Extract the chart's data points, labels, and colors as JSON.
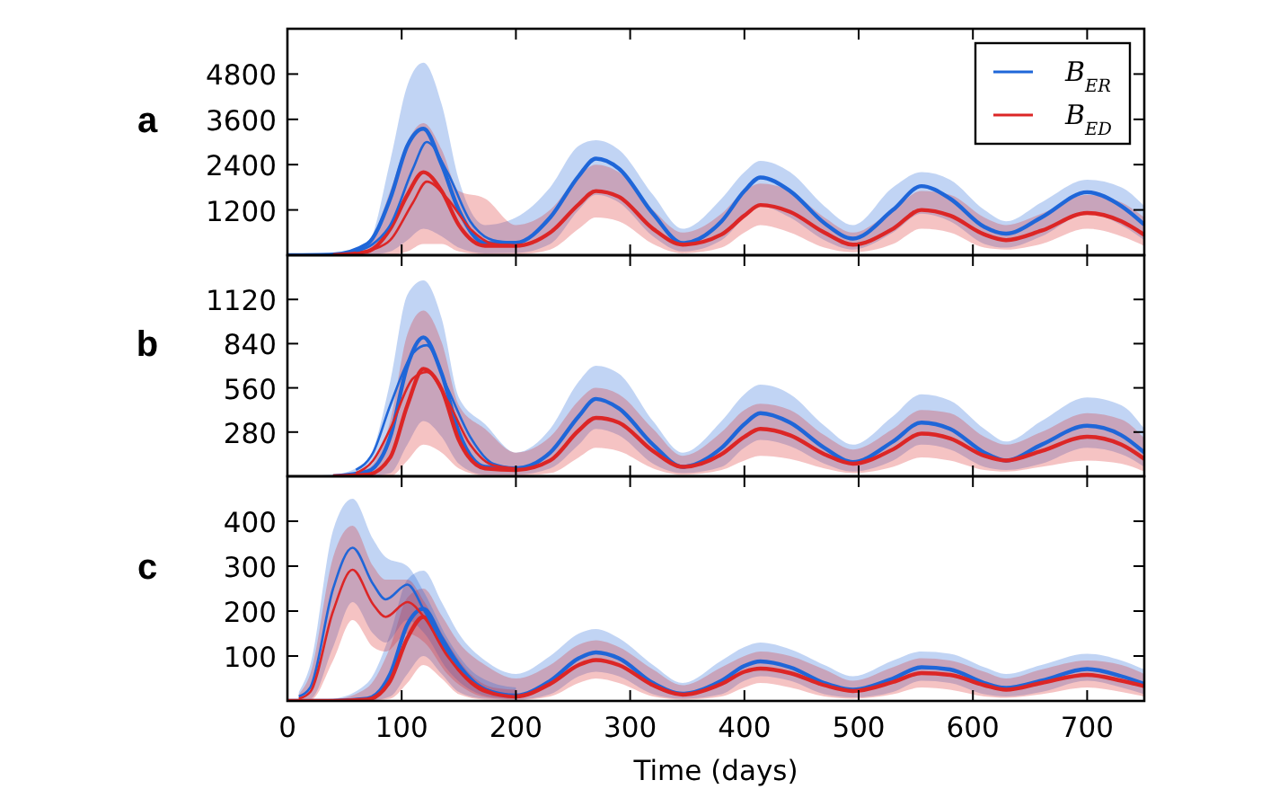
{
  "chart_data": [
    {
      "type": "line",
      "title": "a",
      "xlim": [
        0,
        750
      ],
      "xticks": [
        0,
        100,
        200,
        300,
        400,
        500,
        600,
        700
      ],
      "ylim": [
        0,
        6000
      ],
      "yticks": [
        1200,
        2400,
        3600,
        4800
      ],
      "tick_labels": "y",
      "legend": "top right",
      "series": [
        {
          "name": "B$_{ER}$",
          "color": "#1f66d8",
          "x": [
            0,
            40,
            70,
            90,
            105,
            119,
            135,
            150,
            173,
            200,
            230,
            255,
            270,
            290,
            320,
            346,
            380,
            400,
            414,
            440,
            470,
            495,
            530,
            555,
            580,
            610,
            629,
            660,
            700,
            730,
            750
          ],
          "values": [
            0,
            20,
            300,
            1500,
            2900,
            3350,
            2400,
            1200,
            320,
            330,
            1000,
            2100,
            2560,
            2300,
            1100,
            320,
            900,
            1700,
            2060,
            1700,
            850,
            440,
            1200,
            1830,
            1500,
            750,
            570,
            1000,
            1670,
            1300,
            810
          ],
          "upper": [
            0,
            40,
            300,
            2500,
            4500,
            5100,
            4000,
            2000,
            800,
            1000,
            1800,
            2900,
            3050,
            2800,
            1600,
            700,
            1500,
            2200,
            2500,
            2200,
            1300,
            800,
            1800,
            2200,
            2000,
            1200,
            900,
            1400,
            2000,
            1800,
            1300
          ],
          "lower": [
            0,
            0,
            0,
            100,
            400,
            700,
            500,
            200,
            50,
            60,
            300,
            1200,
            1600,
            1400,
            500,
            100,
            400,
            1000,
            1300,
            1000,
            400,
            150,
            600,
            1100,
            900,
            300,
            200,
            500,
            1100,
            800,
            400
          ]
        },
        {
          "name": "B$_{ED}$",
          "color": "#dc2626",
          "x": [
            0,
            40,
            70,
            90,
            105,
            119,
            135,
            150,
            173,
            200,
            230,
            255,
            270,
            290,
            320,
            346,
            380,
            400,
            414,
            440,
            470,
            495,
            530,
            555,
            580,
            610,
            629,
            660,
            700,
            730,
            750
          ],
          "values": [
            null,
            0,
            100,
            700,
            1600,
            2200,
            1700,
            800,
            250,
            250,
            600,
            1350,
            1700,
            1550,
            700,
            280,
            550,
            1050,
            1330,
            1150,
            600,
            280,
            700,
            1200,
            1050,
            550,
            400,
            650,
            1120,
            900,
            540
          ],
          "upper": [
            0,
            20,
            300,
            1700,
            3000,
            3500,
            2800,
            1700,
            1500,
            800,
            1200,
            2100,
            2400,
            2200,
            1200,
            600,
            1100,
            1700,
            1900,
            1700,
            1000,
            600,
            1200,
            1700,
            1600,
            1000,
            800,
            1100,
            1600,
            1400,
            1000
          ],
          "lower": [
            0,
            0,
            0,
            0,
            100,
            300,
            300,
            100,
            20,
            20,
            150,
            700,
            1000,
            900,
            300,
            50,
            200,
            600,
            800,
            600,
            200,
            80,
            300,
            700,
            600,
            200,
            150,
            300,
            700,
            500,
            250
          ]
        },
        {
          "color": "#1f66d8",
          "x": [
            60,
            75,
            90,
            110,
            122,
            140,
            160,
            180,
            200
          ],
          "values": [
            100,
            300,
            800,
            2300,
            3000,
            2200,
            900,
            400,
            330
          ]
        },
        {
          "color": "#dc2626",
          "x": [
            60,
            75,
            90,
            110,
            122,
            140,
            160,
            180,
            200
          ],
          "values": [
            50,
            150,
            400,
            1400,
            1950,
            1500,
            700,
            300,
            250
          ]
        }
      ]
    },
    {
      "type": "line",
      "title": "b",
      "xlim": [
        0,
        750
      ],
      "xticks": [
        0,
        100,
        200,
        300,
        400,
        500,
        600,
        700
      ],
      "ylim": [
        0,
        1400
      ],
      "yticks": [
        280,
        560,
        840,
        1120
      ],
      "tick_labels": "y",
      "series": [
        {
          "color": "#1f66d8",
          "x": [
            0,
            40,
            70,
            90,
            105,
            119,
            135,
            150,
            173,
            200,
            230,
            255,
            270,
            290,
            320,
            346,
            380,
            400,
            414,
            440,
            470,
            495,
            530,
            555,
            580,
            610,
            629,
            660,
            700,
            730,
            750
          ],
          "values": [
            null,
            0,
            30,
            250,
            700,
            880,
            650,
            280,
            60,
            50,
            150,
            380,
            490,
            430,
            200,
            60,
            180,
            330,
            400,
            340,
            180,
            90,
            220,
            340,
            300,
            150,
            100,
            200,
            320,
            260,
            150
          ],
          "upper": [
            0,
            10,
            100,
            600,
            1150,
            1240,
            1000,
            500,
            330,
            150,
            300,
            600,
            700,
            650,
            350,
            150,
            350,
            520,
            580,
            520,
            320,
            200,
            380,
            520,
            480,
            300,
            220,
            350,
            500,
            450,
            300
          ],
          "lower": [
            0,
            0,
            0,
            20,
            200,
            350,
            250,
            80,
            10,
            10,
            50,
            200,
            300,
            260,
            80,
            20,
            60,
            180,
            230,
            190,
            80,
            30,
            100,
            200,
            170,
            60,
            40,
            80,
            180,
            140,
            60
          ]
        },
        {
          "color": "#dc2626",
          "x": [
            0,
            40,
            70,
            90,
            105,
            119,
            135,
            150,
            173,
            200,
            230,
            255,
            270,
            290,
            320,
            346,
            380,
            400,
            414,
            440,
            470,
            495,
            530,
            555,
            580,
            610,
            629,
            660,
            700,
            730,
            750
          ],
          "values": [
            null,
            0,
            10,
            120,
            450,
            680,
            550,
            230,
            50,
            40,
            100,
            290,
            370,
            340,
            160,
            60,
            140,
            250,
            300,
            260,
            140,
            80,
            170,
            270,
            240,
            130,
            100,
            160,
            250,
            200,
            110
          ],
          "upper": [
            0,
            5,
            50,
            350,
            900,
            1050,
            850,
            450,
            300,
            150,
            250,
            480,
            560,
            520,
            300,
            130,
            280,
            420,
            460,
            420,
            260,
            170,
            300,
            420,
            400,
            250,
            200,
            280,
            400,
            360,
            240
          ],
          "lower": [
            0,
            0,
            0,
            0,
            100,
            200,
            150,
            50,
            5,
            5,
            20,
            120,
            180,
            160,
            50,
            10,
            40,
            100,
            130,
            110,
            50,
            20,
            60,
            120,
            100,
            40,
            30,
            60,
            100,
            80,
            30
          ]
        },
        {
          "color": "#1f66d8",
          "x": [
            60,
            75,
            90,
            110,
            122,
            140,
            160,
            180,
            200
          ],
          "values": [
            40,
            150,
            450,
            780,
            830,
            560,
            250,
            80,
            50
          ]
        },
        {
          "color": "#dc2626",
          "x": [
            60,
            75,
            90,
            110,
            122,
            140,
            160,
            180,
            200
          ],
          "values": [
            20,
            100,
            300,
            620,
            660,
            480,
            200,
            70,
            50
          ]
        }
      ]
    },
    {
      "type": "line",
      "title": "c",
      "xlabel": "Time (days)",
      "xlim": [
        0,
        750
      ],
      "xticks": [
        0,
        100,
        200,
        300,
        400,
        500,
        600,
        700
      ],
      "ylim": [
        0,
        500
      ],
      "yticks": [
        100,
        200,
        300,
        400
      ],
      "series": [
        {
          "color": "#1f66d8",
          "x": [
            0,
            40,
            70,
            90,
            105,
            119,
            135,
            150,
            173,
            200,
            230,
            255,
            270,
            290,
            320,
            346,
            380,
            400,
            414,
            440,
            470,
            495,
            530,
            555,
            580,
            610,
            629,
            660,
            700,
            730,
            750
          ],
          "values": [
            0,
            0,
            5,
            60,
            170,
            205,
            140,
            80,
            25,
            12,
            45,
            95,
            108,
            95,
            40,
            16,
            45,
            78,
            88,
            75,
            40,
            25,
            50,
            75,
            70,
            40,
            29,
            45,
            71,
            55,
            38
          ],
          "upper": [
            0,
            5,
            40,
            150,
            270,
            290,
            220,
            150,
            90,
            60,
            100,
            150,
            160,
            140,
            80,
            40,
            90,
            120,
            130,
            115,
            80,
            55,
            90,
            110,
            105,
            75,
            60,
            80,
            105,
            90,
            70
          ],
          "lower": [
            0,
            0,
            0,
            10,
            60,
            100,
            60,
            20,
            5,
            3,
            15,
            55,
            65,
            55,
            15,
            5,
            15,
            45,
            55,
            45,
            15,
            8,
            20,
            45,
            40,
            15,
            10,
            20,
            45,
            30,
            15
          ]
        },
        {
          "color": "#dc2626",
          "x": [
            0,
            40,
            70,
            90,
            105,
            119,
            135,
            150,
            173,
            200,
            230,
            255,
            270,
            290,
            320,
            346,
            380,
            400,
            414,
            440,
            470,
            495,
            530,
            555,
            580,
            610,
            629,
            660,
            700,
            730,
            750
          ],
          "values": [
            0,
            0,
            3,
            45,
            140,
            187,
            125,
            70,
            22,
            10,
            38,
            80,
            91,
            80,
            35,
            14,
            38,
            65,
            72,
            62,
            35,
            22,
            42,
            62,
            58,
            35,
            25,
            40,
            58,
            45,
            33
          ],
          "upper": [
            0,
            3,
            30,
            120,
            230,
            250,
            190,
            130,
            80,
            50,
            80,
            125,
            135,
            120,
            70,
            35,
            75,
            100,
            110,
            100,
            70,
            45,
            75,
            95,
            90,
            65,
            50,
            70,
            90,
            80,
            60
          ],
          "lower": [
            0,
            0,
            0,
            5,
            40,
            80,
            50,
            15,
            3,
            2,
            10,
            40,
            50,
            40,
            10,
            3,
            10,
            30,
            40,
            30,
            10,
            5,
            15,
            30,
            25,
            10,
            7,
            15,
            30,
            20,
            10
          ]
        },
        {
          "color": "#1f66d8",
          "x": [
            10,
            20,
            40,
            57,
            75,
            86,
            105,
            120,
            140,
            160,
            180,
            200
          ],
          "values": [
            10,
            30,
            250,
            341,
            260,
            226,
            259,
            200,
            110,
            50,
            20,
            12
          ],
          "upper": [
            20,
            80,
            380,
            450,
            360,
            320,
            300,
            240,
            140,
            70,
            40,
            30
          ],
          "lower": [
            5,
            5,
            120,
            220,
            150,
            130,
            180,
            150,
            70,
            25,
            8,
            5
          ]
        },
        {
          "color": "#dc2626",
          "x": [
            10,
            20,
            40,
            57,
            75,
            86,
            105,
            120,
            140,
            160,
            180,
            200
          ],
          "values": [
            5,
            20,
            200,
            292,
            215,
            187,
            220,
            185,
            100,
            45,
            18,
            10
          ],
          "upper": [
            15,
            60,
            320,
            390,
            300,
            270,
            270,
            220,
            130,
            60,
            30,
            25
          ],
          "lower": [
            2,
            2,
            90,
            180,
            120,
            110,
            150,
            130,
            60,
            20,
            6,
            4
          ]
        }
      ]
    }
  ]
}
